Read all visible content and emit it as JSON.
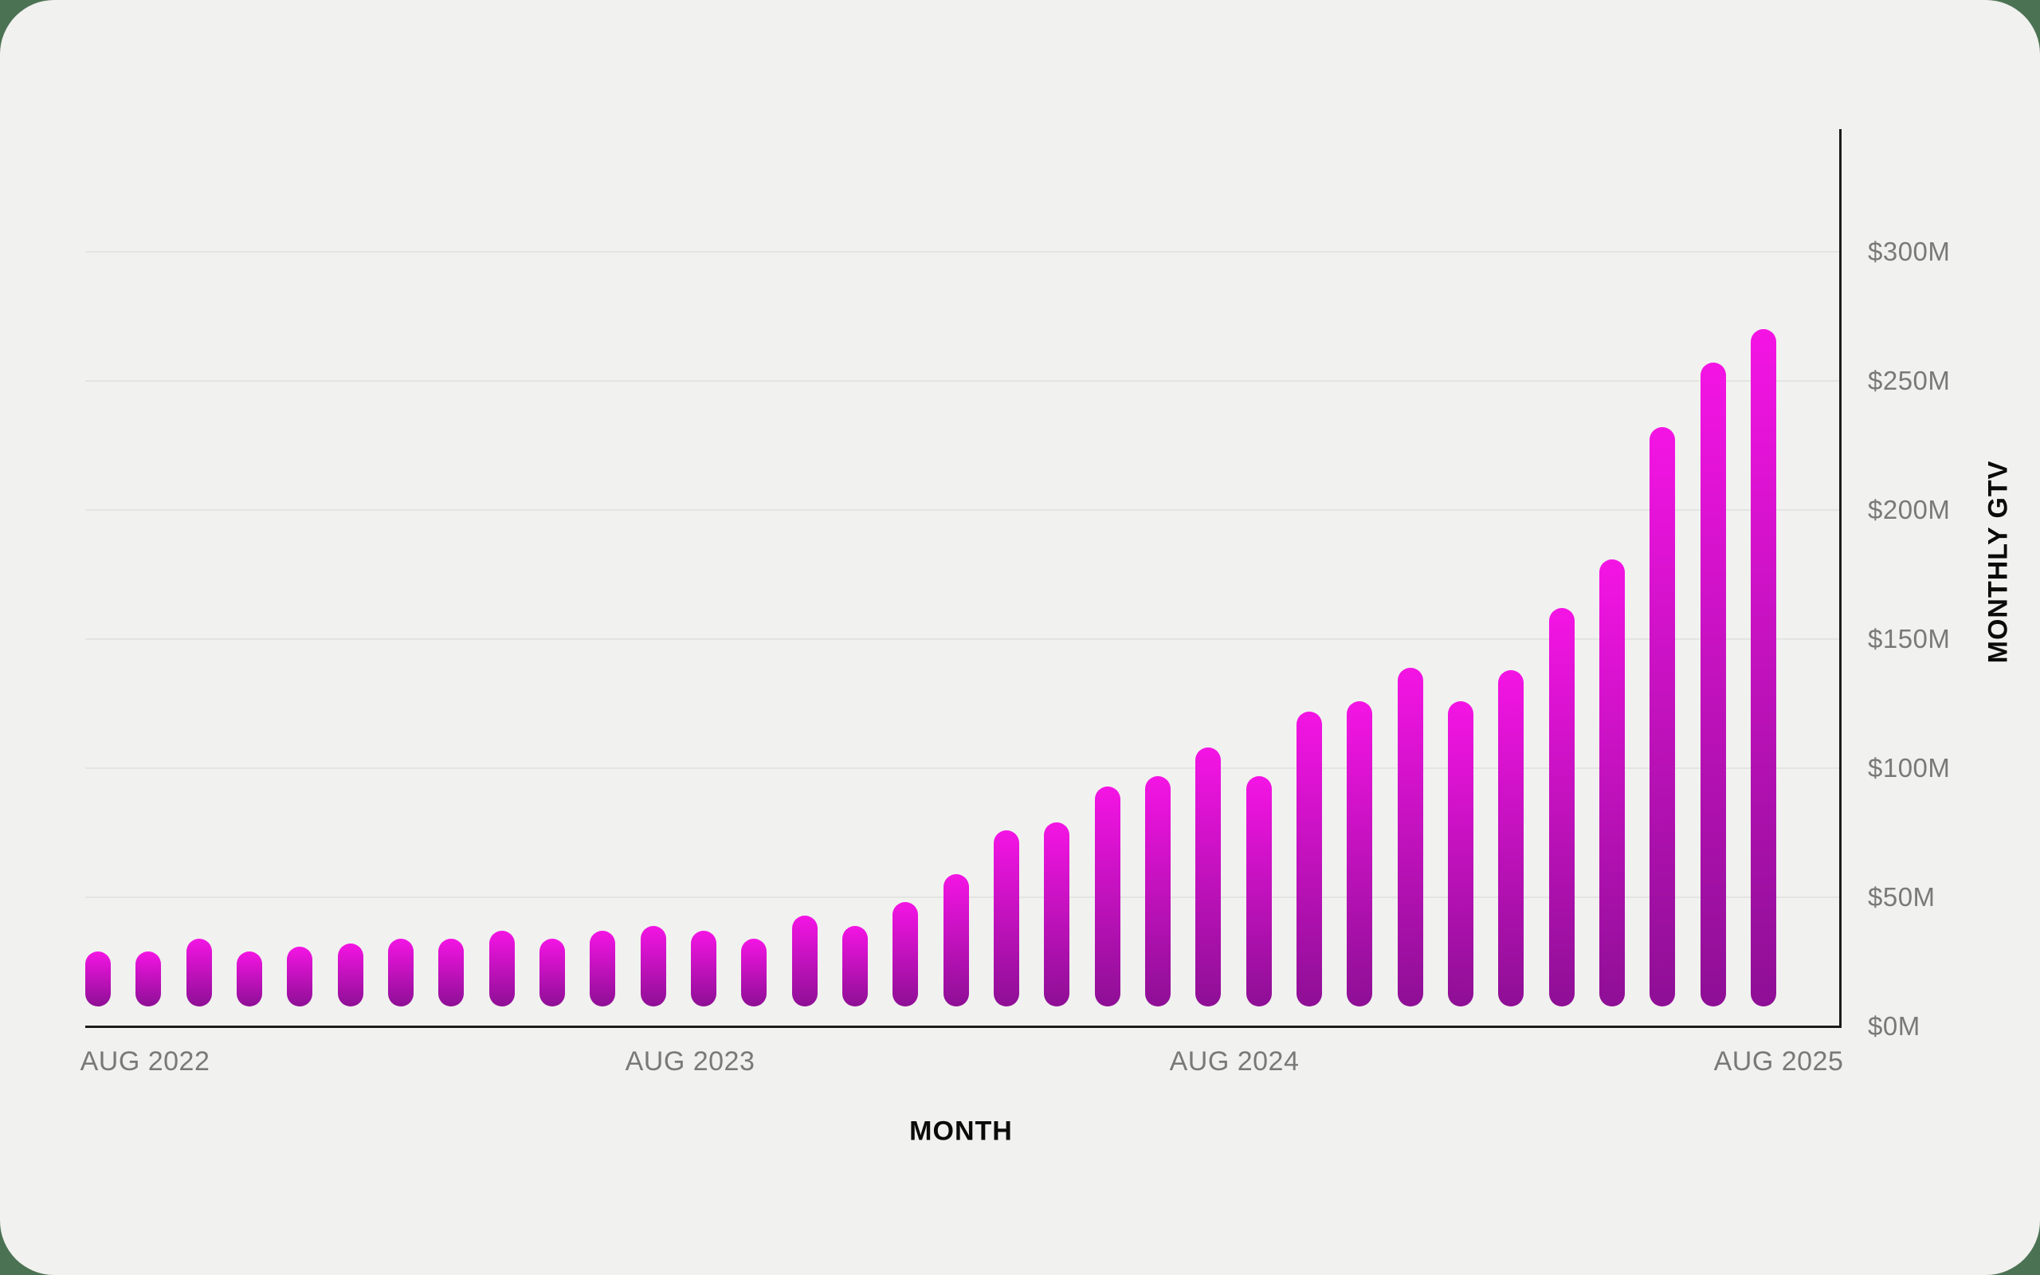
{
  "chart_data": {
    "type": "bar",
    "title": "",
    "xlabel": "MONTH",
    "ylabel": "MONTHLY GTV",
    "unit": "$M (USD, millions)",
    "x_tick_labels": [
      "AUG 2022",
      "AUG 2023",
      "AUG 2024",
      "AUG 2025"
    ],
    "y_tick_labels": [
      "$0M",
      "$50M",
      "$100M",
      "$150M",
      "$200M",
      "$250M",
      "$300M"
    ],
    "y_tick_values": [
      0,
      50,
      100,
      150,
      200,
      250,
      300
    ],
    "ylim": [
      0,
      347
    ],
    "grid": "horizontal",
    "legend": "none",
    "bar_style": "rounded-capsule-gradient",
    "n_bars": 34,
    "values": [
      29,
      29,
      34,
      29,
      31,
      32,
      34,
      34,
      37,
      34,
      37,
      39,
      37,
      34,
      43,
      39,
      48,
      59,
      76,
      79,
      93,
      97,
      108,
      97,
      122,
      126,
      139,
      126,
      138,
      162,
      181,
      232,
      257,
      270
    ]
  },
  "colors": {
    "page_background": "#4c7254",
    "card_background": "#f1f1ef",
    "bar_gradient_top": "#f414e4",
    "bar_gradient_bottom": "#8e0f95",
    "gridline": "#e4e4e2",
    "axis_line": "#1c1c1c",
    "tick_label": "#797976",
    "axis_title": "#0b0b0b"
  }
}
